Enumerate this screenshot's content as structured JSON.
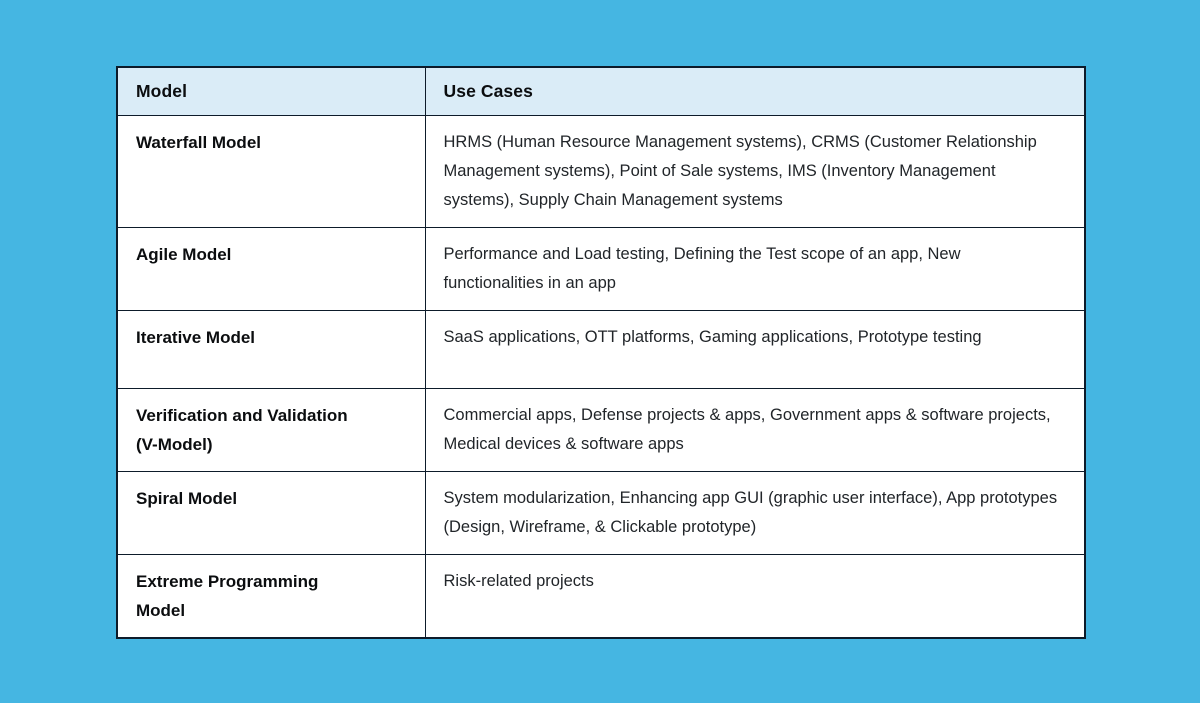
{
  "theme": {
    "page_bg": "#45b6e2",
    "header_bg": "#daecf7",
    "border": "#0d1b2a",
    "cell_bg": "#ffffff",
    "heading_text": "#0b0d0f",
    "body_text": "#212529"
  },
  "chart_data": {
    "type": "table",
    "title": "",
    "columns": [
      "Model",
      "Use Cases"
    ],
    "rows": [
      [
        "Waterfall Model",
        "HRMS (Human Resource Management systems), CRMS (Customer Relationship Management systems), Point of Sale systems, IMS (Inventory Management systems), Supply Chain Management systems"
      ],
      [
        "Agile Model",
        "Performance and Load testing, Defining the Test scope of an app, New functionalities in an app"
      ],
      [
        "Iterative Model",
        "SaaS applications, OTT platforms, Gaming applications, Prototype testing"
      ],
      [
        "Verification and Validation (V-Model)",
        "Commercial apps, Defense projects & apps, Government apps & software projects, Medical devices & software apps"
      ],
      [
        "Spiral Model",
        "System modularization, Enhancing app GUI (graphic user interface), App prototypes (Design, Wireframe, & Clickable prototype)"
      ],
      [
        "Extreme Programming Model",
        "Risk-related projects"
      ]
    ]
  }
}
